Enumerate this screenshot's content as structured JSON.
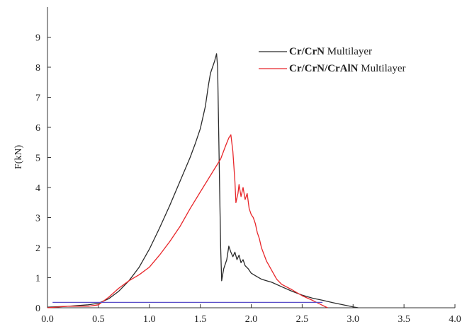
{
  "chart_data": {
    "type": "line",
    "ylabel": "F(kN)",
    "xlabel": "",
    "xlim": [
      0,
      4.0
    ],
    "ylim": [
      0,
      10
    ],
    "x_ticks": [
      "0.0",
      "0.5",
      "1.0",
      "1.5",
      "2.0",
      "2.5",
      "3.0",
      "3.5",
      "4.0"
    ],
    "y_ticks": [
      "0",
      "1",
      "2",
      "3",
      "4",
      "5",
      "6",
      "7",
      "8",
      "9"
    ],
    "grid": false,
    "legend_position": "top-right",
    "series": [
      {
        "name_bold": "Cr/CrN",
        "name_rest": " Multilayer",
        "color": "#2b2b2b",
        "points": [
          [
            0.0,
            0.02
          ],
          [
            0.2,
            0.05
          ],
          [
            0.4,
            0.1
          ],
          [
            0.5,
            0.15
          ],
          [
            0.6,
            0.3
          ],
          [
            0.7,
            0.55
          ],
          [
            0.8,
            0.9
          ],
          [
            0.9,
            1.35
          ],
          [
            1.0,
            1.95
          ],
          [
            1.1,
            2.65
          ],
          [
            1.2,
            3.4
          ],
          [
            1.3,
            4.2
          ],
          [
            1.4,
            5.0
          ],
          [
            1.45,
            5.45
          ],
          [
            1.5,
            5.95
          ],
          [
            1.55,
            6.7
          ],
          [
            1.58,
            7.4
          ],
          [
            1.6,
            7.8
          ],
          [
            1.62,
            8.0
          ],
          [
            1.64,
            8.2
          ],
          [
            1.66,
            8.45
          ],
          [
            1.67,
            8.0
          ],
          [
            1.68,
            6.0
          ],
          [
            1.69,
            4.0
          ],
          [
            1.7,
            2.0
          ],
          [
            1.71,
            0.9
          ],
          [
            1.73,
            1.3
          ],
          [
            1.76,
            1.6
          ],
          [
            1.78,
            2.05
          ],
          [
            1.8,
            1.85
          ],
          [
            1.82,
            1.7
          ],
          [
            1.84,
            1.85
          ],
          [
            1.86,
            1.6
          ],
          [
            1.88,
            1.75
          ],
          [
            1.9,
            1.5
          ],
          [
            1.92,
            1.6
          ],
          [
            1.94,
            1.4
          ],
          [
            1.97,
            1.3
          ],
          [
            2.0,
            1.15
          ],
          [
            2.05,
            1.05
          ],
          [
            2.1,
            0.95
          ],
          [
            2.2,
            0.85
          ],
          [
            2.3,
            0.7
          ],
          [
            2.4,
            0.55
          ],
          [
            2.5,
            0.42
          ],
          [
            2.6,
            0.32
          ],
          [
            2.7,
            0.25
          ],
          [
            2.8,
            0.17
          ],
          [
            2.9,
            0.1
          ],
          [
            3.0,
            0.03
          ],
          [
            3.05,
            0.0
          ]
        ]
      },
      {
        "name_bold": "Cr/CrN/CrAlN",
        "name_rest": " Multilayer",
        "color": "#e8262a",
        "points": [
          [
            0.0,
            0.0
          ],
          [
            0.2,
            0.05
          ],
          [
            0.4,
            0.05
          ],
          [
            0.5,
            0.1
          ],
          [
            0.6,
            0.35
          ],
          [
            0.7,
            0.65
          ],
          [
            0.8,
            0.9
          ],
          [
            0.9,
            1.1
          ],
          [
            1.0,
            1.35
          ],
          [
            1.1,
            1.75
          ],
          [
            1.2,
            2.2
          ],
          [
            1.3,
            2.7
          ],
          [
            1.4,
            3.3
          ],
          [
            1.5,
            3.85
          ],
          [
            1.6,
            4.4
          ],
          [
            1.7,
            4.95
          ],
          [
            1.75,
            5.4
          ],
          [
            1.78,
            5.65
          ],
          [
            1.8,
            5.75
          ],
          [
            1.82,
            5.2
          ],
          [
            1.84,
            4.2
          ],
          [
            1.85,
            3.5
          ],
          [
            1.87,
            3.8
          ],
          [
            1.88,
            4.1
          ],
          [
            1.9,
            3.7
          ],
          [
            1.92,
            4.0
          ],
          [
            1.94,
            3.6
          ],
          [
            1.96,
            3.8
          ],
          [
            1.98,
            3.3
          ],
          [
            2.0,
            3.1
          ],
          [
            2.02,
            3.0
          ],
          [
            2.04,
            2.8
          ],
          [
            2.06,
            2.5
          ],
          [
            2.08,
            2.3
          ],
          [
            2.1,
            2.0
          ],
          [
            2.15,
            1.55
          ],
          [
            2.2,
            1.25
          ],
          [
            2.25,
            0.95
          ],
          [
            2.3,
            0.78
          ],
          [
            2.4,
            0.6
          ],
          [
            2.5,
            0.4
          ],
          [
            2.6,
            0.25
          ],
          [
            2.7,
            0.08
          ],
          [
            2.75,
            0.0
          ]
        ]
      },
      {
        "name_bold": "",
        "name_rest": "",
        "color": "#5a4fc8",
        "points": [
          [
            0.05,
            0.18
          ],
          [
            2.7,
            0.18
          ]
        ]
      }
    ]
  }
}
